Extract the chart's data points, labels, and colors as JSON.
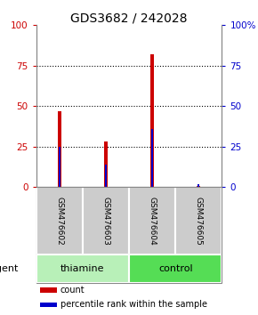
{
  "title": "GDS3682 / 242028",
  "samples": [
    "GSM476602",
    "GSM476603",
    "GSM476604",
    "GSM476605"
  ],
  "count_values": [
    47,
    28,
    82,
    0.5
  ],
  "percentile_values": [
    25,
    14,
    36,
    2
  ],
  "ylim": [
    0,
    100
  ],
  "yticks": [
    0,
    25,
    50,
    75,
    100
  ],
  "ytick_labels_left": [
    "0",
    "25",
    "50",
    "75",
    "100"
  ],
  "ytick_labels_right": [
    "0",
    "25",
    "50",
    "75",
    "100%"
  ],
  "grid_values": [
    25,
    50,
    75
  ],
  "left_axis_color": "#cc0000",
  "right_axis_color": "#0000cc",
  "bar_color_count": "#cc0000",
  "bar_color_pct": "#0000cc",
  "red_bar_width": 0.08,
  "blue_bar_width": 0.04,
  "groups": [
    {
      "label": "thiamine",
      "indices": [
        0,
        1
      ],
      "color": "#b8f0b8"
    },
    {
      "label": "control",
      "indices": [
        2,
        3
      ],
      "color": "#55dd55"
    }
  ],
  "agent_label": "agent",
  "legend_items": [
    {
      "label": "count",
      "color": "#cc0000"
    },
    {
      "label": "percentile rank within the sample",
      "color": "#0000cc"
    }
  ],
  "label_box_color": "#cccccc",
  "title_fontsize": 10,
  "tick_fontsize": 7.5,
  "legend_fontsize": 7,
  "sample_fontsize": 6.5,
  "group_fontsize": 8,
  "agent_fontsize": 8
}
